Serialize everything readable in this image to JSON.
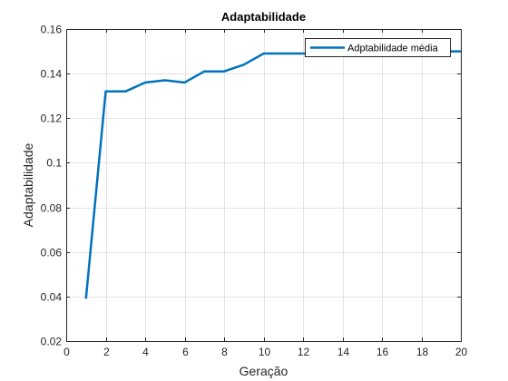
{
  "chart_data": {
    "type": "line",
    "title": "Adaptabilidade",
    "xlabel": "Geração",
    "ylabel": "Adaptabilidade",
    "xlim": [
      0,
      20
    ],
    "ylim": [
      0.02,
      0.16
    ],
    "xticks": [
      0,
      2,
      4,
      6,
      8,
      10,
      12,
      14,
      16,
      18,
      20
    ],
    "xtick_labels": [
      "0",
      "2",
      "4",
      "6",
      "8",
      "10",
      "12",
      "14",
      "16",
      "18",
      "20"
    ],
    "yticks": [
      0.02,
      0.04,
      0.06,
      0.08,
      0.1,
      0.12,
      0.14,
      0.16
    ],
    "ytick_labels": [
      "0.02",
      "0.04",
      "0.06",
      "0.08",
      "0.1",
      "0.12",
      "0.14",
      "0.16"
    ],
    "grid": true,
    "legend_position": "top-right",
    "series": [
      {
        "name": "Adptabilidade média",
        "color": "#0072bd",
        "x": [
          1,
          2,
          3,
          4,
          5,
          6,
          7,
          8,
          9,
          10,
          11,
          12,
          13,
          14,
          15,
          16,
          17,
          18,
          19,
          20
        ],
        "y": [
          0.039,
          0.132,
          0.132,
          0.136,
          0.137,
          0.136,
          0.141,
          0.141,
          0.144,
          0.149,
          0.149,
          0.149,
          0.149,
          0.149,
          0.149,
          0.149,
          0.149,
          0.149,
          0.15,
          0.15
        ]
      }
    ]
  }
}
